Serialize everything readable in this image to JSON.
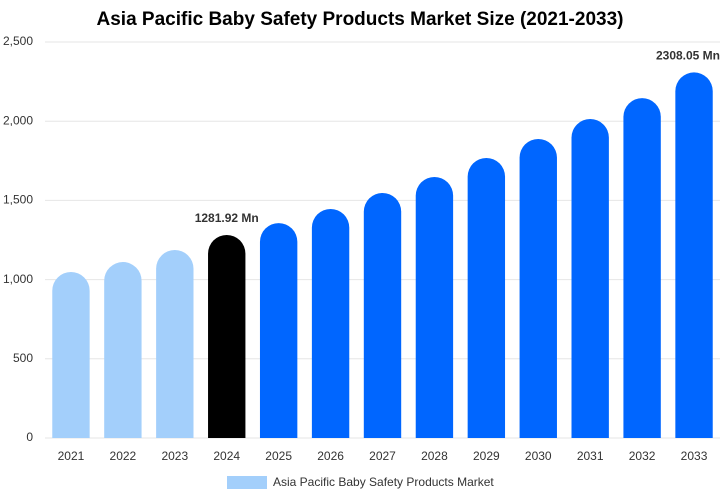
{
  "chart_data": {
    "type": "bar",
    "title": "Asia Pacific Baby Safety Products Market Size (2021-2033)",
    "categories": [
      "2021",
      "2022",
      "2023",
      "2024",
      "2025",
      "2026",
      "2027",
      "2028",
      "2029",
      "2030",
      "2031",
      "2032",
      "2033"
    ],
    "series": [
      {
        "name": "Asia Pacific Baby Safety Products Market",
        "color": "#a3cffb",
        "colors": [
          "#a3cffb",
          "#a3cffb",
          "#a3cffb",
          "#000000",
          "#0066ff",
          "#0066ff",
          "#0066ff",
          "#0066ff",
          "#0066ff",
          "#0066ff",
          "#0066ff",
          "#0066ff",
          "#0066ff"
        ],
        "values": [
          1048,
          1111,
          1187,
          1281.92,
          1357,
          1446,
          1547,
          1648,
          1768,
          1888,
          2014,
          2146,
          2308.05
        ],
        "value_labels": [
          null,
          null,
          null,
          "1281.92 Mn",
          null,
          null,
          null,
          null,
          null,
          null,
          null,
          null,
          "2308.05 Mn"
        ]
      }
    ],
    "ylim": [
      0,
      2500
    ],
    "yticks": [
      0,
      500,
      {
        "value": 1000,
        "label": "1,000"
      },
      {
        "value": 1500,
        "label": "1,500"
      },
      {
        "value": 2000,
        "label": "2,000"
      },
      {
        "value": 2500,
        "label": "2,500"
      }
    ],
    "grid": true
  }
}
